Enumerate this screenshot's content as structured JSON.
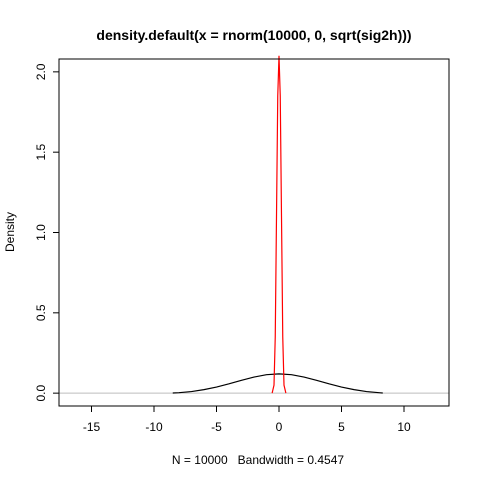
{
  "chart_data": {
    "type": "line",
    "title": "density.default(x = rnorm(10000, 0, sqrt(sig2h)))",
    "xlabel": "N = 10000   Bandwidth = 0.4547",
    "ylabel": "Density",
    "xlim": [
      -17.6,
      13.6
    ],
    "ylim": [
      -0.08,
      2.08
    ],
    "x_ticks": [
      -15,
      -10,
      -5,
      0,
      5,
      10
    ],
    "x_tick_labels": [
      "-15",
      "-10",
      "-5",
      "0",
      "5",
      "10"
    ],
    "y_ticks": [
      0.0,
      0.5,
      1.0,
      1.5,
      2.0
    ],
    "y_tick_labels": [
      "0.0",
      "0.5",
      "1.0",
      "1.5",
      "2.0"
    ],
    "baseline": 0,
    "series": [
      {
        "color": "#000000",
        "x": [
          -8.5,
          -8.0,
          -7.0,
          -6.0,
          -5.0,
          -4.0,
          -3.0,
          -2.0,
          -1.0,
          0.0,
          1.0,
          2.0,
          3.0,
          4.0,
          5.0,
          6.0,
          7.0,
          8.0,
          8.3
        ],
        "y": [
          0.001,
          0.003,
          0.01,
          0.022,
          0.038,
          0.058,
          0.08,
          0.1,
          0.115,
          0.12,
          0.115,
          0.1,
          0.08,
          0.058,
          0.038,
          0.022,
          0.01,
          0.003,
          0.001
        ]
      },
      {
        "color": "#ff0000",
        "x": [
          -0.55,
          -0.4,
          -0.3,
          -0.2,
          -0.1,
          0.0,
          0.1,
          0.2,
          0.3,
          0.4,
          0.55
        ],
        "y": [
          0.0,
          0.05,
          0.35,
          1.1,
          1.85,
          2.1,
          1.85,
          1.1,
          0.35,
          0.05,
          0.0
        ]
      }
    ]
  }
}
